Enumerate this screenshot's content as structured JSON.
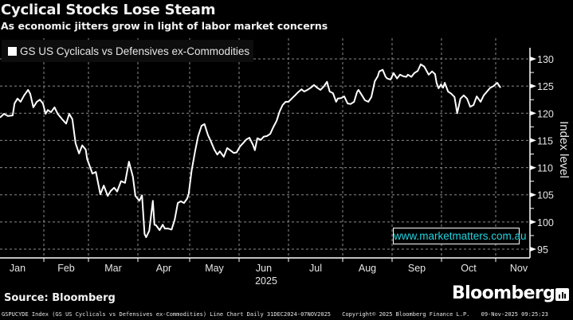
{
  "header": {
    "title": "Cyclical Stocks Lose Steam",
    "subtitle": "As economic jitters grow in light of labor market concerns"
  },
  "legend": {
    "items": [
      {
        "label": "GS US Cyclicals vs Defensives ex-Commodities",
        "color": "#ffffff"
      }
    ]
  },
  "watermark": "www.marketmatters.com.au",
  "source": "Source: Bloomberg",
  "brand": "Bloomberg",
  "footer": {
    "description": "GSPUCYDE Index (GS US Cyclicals vs Defensives ex-Commodities) Line Chart Daily 31DEC2024-07NOV2025",
    "copyright": "Copyright© 2025 Bloomberg Finance L.P.",
    "timestamp": "09-Nov-2025 09:25:23"
  },
  "colors": {
    "line": "#ffffff",
    "watermark_text": "#22d3e0",
    "grid": "#8c8c8c",
    "background": "#000000"
  },
  "chart_data": {
    "type": "line",
    "title": "Cyclical Stocks Lose Steam",
    "subtitle": "As economic jitters grow in light of labor market concerns",
    "xlabel": "2025",
    "ylabel": "Index level",
    "ylim": [
      94,
      131.5
    ],
    "yticks": [
      95,
      100,
      105,
      110,
      115,
      120,
      125,
      130
    ],
    "xtick_labels": [
      "Jan",
      "Feb",
      "Mar",
      "Apr",
      "May",
      "Jun",
      "Jul",
      "Aug",
      "Sep",
      "Oct",
      "Nov"
    ],
    "x_year_label": "2025",
    "grid": true,
    "legend_position": "top-left",
    "yaxis_side": "right",
    "date_range": [
      "2024-12-31",
      "2025-11-07"
    ],
    "series": [
      {
        "name": "GS US Cyclicals vs Defensives ex-Commodities",
        "x_month": [
          0.0,
          0.09,
          0.18,
          0.29,
          0.33,
          0.4,
          0.47,
          0.55,
          0.64,
          0.69,
          0.76,
          0.84,
          0.91,
          0.98,
          1.04,
          1.09,
          1.16,
          1.24,
          1.31,
          1.41,
          1.5,
          1.57,
          1.64,
          1.71,
          1.79,
          1.86,
          1.94,
          1.97,
          2.08,
          2.15,
          2.24,
          2.31,
          2.39,
          2.45,
          2.52,
          2.58,
          2.66,
          2.74,
          2.82,
          2.9,
          2.95,
          3.03,
          3.08,
          3.13,
          3.16,
          3.22,
          3.29,
          3.32,
          3.35,
          3.42,
          3.48,
          3.52,
          3.58,
          3.65,
          3.71,
          3.77,
          3.83,
          3.89,
          3.95,
          3.98,
          4.04,
          4.11,
          4.17,
          4.24,
          4.3,
          4.37,
          4.43,
          4.5,
          4.56,
          4.61,
          4.69,
          4.76,
          4.82,
          4.89,
          4.95,
          5.02,
          5.08,
          5.15,
          5.21,
          5.28,
          5.32,
          5.37,
          5.44,
          5.5,
          5.56,
          5.63,
          5.69,
          5.76,
          5.82,
          5.88,
          5.94,
          6.0,
          6.06,
          6.12,
          6.18,
          6.24,
          6.29,
          6.35,
          6.41,
          6.47,
          6.53,
          6.59,
          6.65,
          6.71,
          6.76,
          6.82,
          6.88,
          6.91,
          6.97,
          7.03,
          7.1,
          7.16,
          7.23,
          7.29,
          7.32,
          7.39,
          7.45,
          7.52,
          7.58,
          7.65,
          7.71,
          7.74,
          7.81,
          7.87,
          7.9,
          7.97,
          8.03,
          8.1,
          8.16,
          8.23,
          8.29,
          8.32,
          8.39,
          8.45,
          8.52,
          8.58,
          8.65,
          8.68,
          8.74,
          8.81,
          8.87,
          8.9,
          8.94,
          8.99,
          9.03,
          9.06,
          9.12,
          9.18,
          9.24,
          9.29,
          9.35,
          9.41,
          9.47,
          9.53,
          9.59,
          9.65,
          9.72,
          9.78,
          9.84,
          9.9,
          9.96,
          10.03,
          10.09
        ],
        "values": [
          119.2,
          119.9,
          119.5,
          119.6,
          121.8,
          122.7,
          122.1,
          123.3,
          124.3,
          123.6,
          121.1,
          122.1,
          122.5,
          121.8,
          119.9,
          120.6,
          120.2,
          121.1,
          119.9,
          118.9,
          118.1,
          119.9,
          118.9,
          114.5,
          112.6,
          114.1,
          113.3,
          111.6,
          108.9,
          109.2,
          105.1,
          106.7,
          104.8,
          105.7,
          106.3,
          105.6,
          107.5,
          107.2,
          111.1,
          108.3,
          104.8,
          103.9,
          104.9,
          97.8,
          97.2,
          98.4,
          103.9,
          99.5,
          99.4,
          98.5,
          99.5,
          98.8,
          98.8,
          98.6,
          100.4,
          103.5,
          103.8,
          103.5,
          104.3,
          105.1,
          109.5,
          113.0,
          115.7,
          117.7,
          118.0,
          116.0,
          114.8,
          113.3,
          112.4,
          113.0,
          112.0,
          113.6,
          113.2,
          112.7,
          112.8,
          113.9,
          114.5,
          115.2,
          115.5,
          114.2,
          113.2,
          115.4,
          115.1,
          115.7,
          115.8,
          116.2,
          117.4,
          118.6,
          120.3,
          121.5,
          122.1,
          122.1,
          122.7,
          123.3,
          123.9,
          124.4,
          124.0,
          124.3,
          124.7,
          125.2,
          124.7,
          124.3,
          124.9,
          125.8,
          124.0,
          123.7,
          122.1,
          122.7,
          122.8,
          123.1,
          121.8,
          121.7,
          122.1,
          123.9,
          124.3,
          123.3,
          122.4,
          122.1,
          123.0,
          125.9,
          126.8,
          127.7,
          128.0,
          126.7,
          126.4,
          126.2,
          127.4,
          126.4,
          127.1,
          126.8,
          126.7,
          127.1,
          126.7,
          127.4,
          127.8,
          129.0,
          128.6,
          128.1,
          127.1,
          127.7,
          127.2,
          125.6,
          124.6,
          125.3,
          124.7,
          125.6,
          124.0,
          123.6,
          123.0,
          120.0,
          122.7,
          123.3,
          122.7,
          121.2,
          121.5,
          123.1,
          122.1,
          123.3,
          124.0,
          124.7,
          125.0,
          125.6,
          124.7,
          125.3,
          123.9,
          124.7,
          124.1
        ]
      }
    ]
  }
}
